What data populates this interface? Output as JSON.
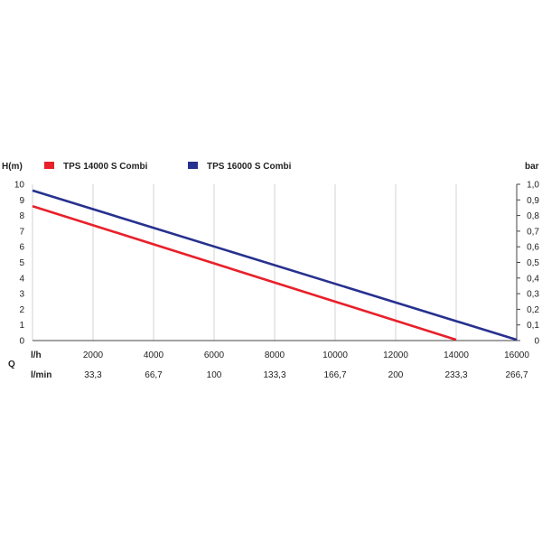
{
  "chart_data": {
    "type": "line",
    "ylabel_left": "H(m)",
    "ylabel_right": "bar",
    "q_label": "Q",
    "x_unit_lh": "l/h",
    "x_unit_lmin": "l/min",
    "xlim": [
      0,
      16000
    ],
    "ylim": [
      0,
      10
    ],
    "y2lim": [
      0,
      1
    ],
    "x_ticks": [
      2000,
      4000,
      6000,
      8000,
      10000,
      12000,
      14000,
      16000
    ],
    "x_ticks_lmin": [
      "33,3",
      "66,7",
      "100",
      "133,3",
      "166,7",
      "200",
      "233,3",
      "266,7"
    ],
    "y_ticks": [
      0,
      1,
      2,
      3,
      4,
      5,
      6,
      7,
      8,
      9,
      10
    ],
    "y2_ticks": [
      "0",
      "0,1",
      "0,2",
      "0,3",
      "0,4",
      "0,5",
      "0,6",
      "0,7",
      "0,8",
      "0,9",
      "1,0"
    ],
    "grid": "vertical",
    "legend_position": "top",
    "series": [
      {
        "name": "TPS 14000 S Combi",
        "color": "#e8202a",
        "x": [
          0,
          14000
        ],
        "y": [
          8.6,
          0.05
        ]
      },
      {
        "name": "TPS 16000 S Combi",
        "color": "#27318f",
        "x": [
          0,
          16000
        ],
        "y": [
          9.6,
          0.05
        ]
      }
    ]
  }
}
